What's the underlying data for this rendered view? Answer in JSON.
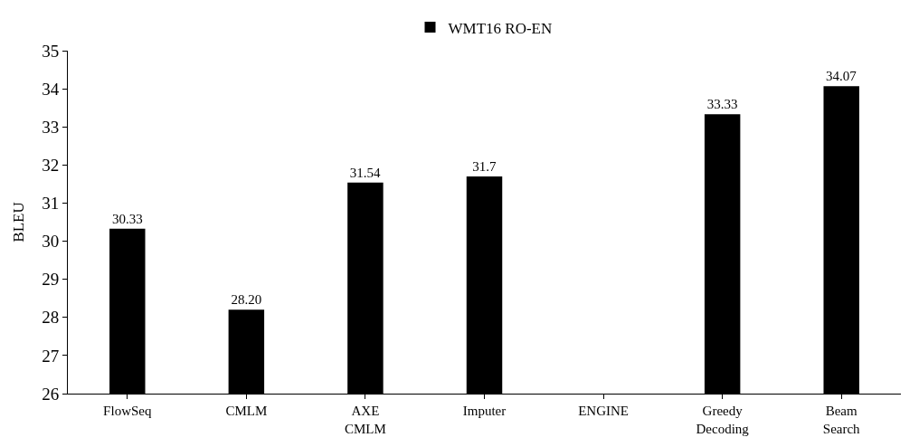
{
  "chart_data": {
    "type": "bar",
    "ylabel": "BLEU",
    "categories": [
      "FlowSeq",
      "CMLM",
      "AXE CMLM",
      "Imputer",
      "ENGINE",
      "Greedy Decoding",
      "Beam Search"
    ],
    "series": [
      {
        "name": "WMT16 RO-EN",
        "color": "#000000",
        "values": [
          30.33,
          28.2,
          31.54,
          31.7,
          null,
          33.33,
          34.07
        ],
        "value_labels": [
          "30.33",
          "28.20",
          "31.54",
          "31.7",
          null,
          "33.33",
          "34.07"
        ]
      }
    ],
    "ylim": [
      26,
      35
    ],
    "yticks": [
      26,
      27,
      28,
      29,
      30,
      31,
      32,
      33,
      34,
      35
    ],
    "legend": "top"
  }
}
